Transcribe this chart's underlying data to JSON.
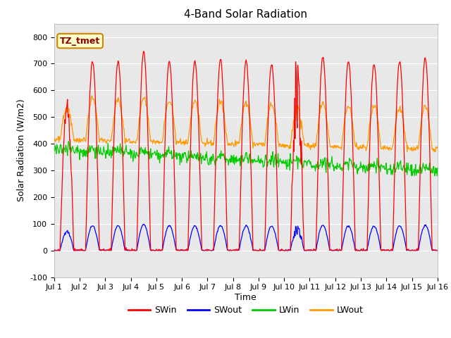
{
  "title": "4-Band Solar Radiation",
  "xlabel": "Time",
  "ylabel": "Solar Radiation (W/m2)",
  "ylim": [
    -100,
    850
  ],
  "yticks": [
    -100,
    0,
    100,
    200,
    300,
    400,
    500,
    600,
    700,
    800
  ],
  "xlim_days": 15,
  "n_days": 15,
  "annotation_label": "TZ_tmet",
  "legend_entries": [
    "SWin",
    "SWout",
    "LWin",
    "LWout"
  ],
  "legend_colors": [
    "#ff0000",
    "#0000ff",
    "#00cc00",
    "#ff9900"
  ],
  "background_color": "#ffffff",
  "plot_bg_color": "#e8e8e8",
  "grid_color": "#ffffff",
  "title_fontsize": 11,
  "label_fontsize": 9,
  "tick_fontsize": 8
}
